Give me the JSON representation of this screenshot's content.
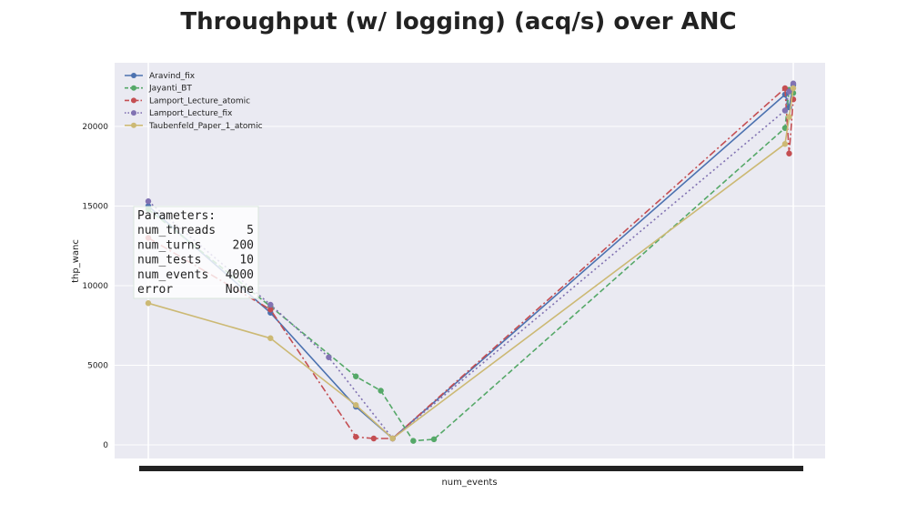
{
  "chart_data": {
    "type": "line",
    "title": "Throughput (w/ logging) (acq/s) over ANC",
    "xlabel": "num_events",
    "ylabel": "thp_wanc",
    "ylim": [
      -800,
      24000
    ],
    "yticks": [
      0,
      5000,
      10000,
      15000,
      20000
    ],
    "grid": true,
    "legend_position": "top-left",
    "series": [
      {
        "name": "Aravind_fix",
        "color": "#4c72b0",
        "line_style": "solid",
        "x": [
          1,
          10,
          50,
          100,
          2000,
          2020,
          2040
        ],
        "y": [
          15000,
          8300,
          2400,
          400,
          22000,
          21200,
          22600
        ]
      },
      {
        "name": "Jayanti_BT",
        "color": "#55a868",
        "line_style": "dashed",
        "x": [
          1,
          10,
          50,
          80,
          200,
          300,
          2000,
          2020,
          2040
        ],
        "y": [
          14800,
          8700,
          4300,
          3400,
          250,
          350,
          19900,
          22300,
          22100
        ]
      },
      {
        "name": "Lamport_Lecture_atomic",
        "color": "#c44e52",
        "line_style": "dashdot",
        "x": [
          1,
          10,
          50,
          70,
          100,
          2000,
          2020,
          2040
        ],
        "y": [
          13000,
          8500,
          500,
          400,
          400,
          22400,
          18300,
          21700
        ]
      },
      {
        "name": "Lamport_Lecture_fix",
        "color": "#8172b2",
        "line_style": "dotted",
        "x": [
          1,
          10,
          30,
          100,
          2000,
          2020,
          2040
        ],
        "y": [
          15300,
          8800,
          5500,
          400,
          21000,
          22200,
          22700
        ]
      },
      {
        "name": "Taubenfeld_Paper_1_atomic",
        "color": "#ccb974",
        "line_style": "solid",
        "x": [
          1,
          10,
          50,
          100,
          2000,
          2020,
          2040
        ],
        "y": [
          8900,
          6700,
          2500,
          400,
          18900,
          20600,
          22400
        ]
      }
    ],
    "parameters_box": {
      "heading": "Parameters:",
      "rows": [
        {
          "key": "num_threads",
          "value": "5"
        },
        {
          "key": "num_turns",
          "value": "200"
        },
        {
          "key": "num_tests",
          "value": "10"
        },
        {
          "key": "num_events",
          "value": "4000"
        },
        {
          "key": "error",
          "value": "None"
        }
      ]
    }
  }
}
